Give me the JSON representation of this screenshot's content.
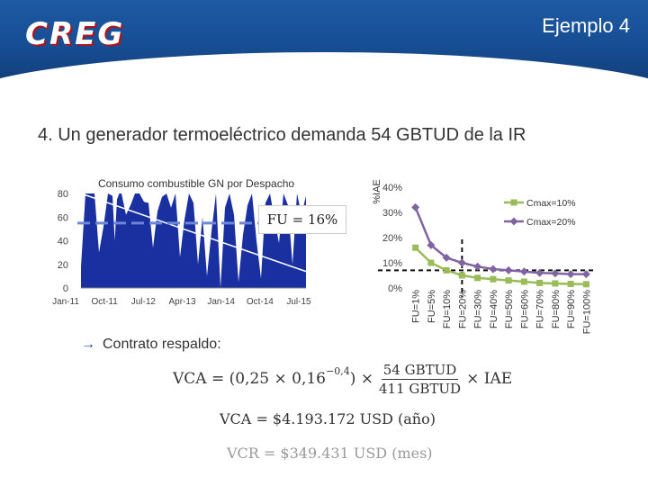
{
  "header": {
    "logo_text": "CREG",
    "slide_title": "Ejemplo 4",
    "colors": {
      "band": "#174e93",
      "logo_accent": "#d9202a"
    }
  },
  "heading": "4. Un generador termoeléctrico demanda 54 GBTUD de la IR",
  "bullet": {
    "icon": "arrow-right-icon",
    "arrow": "→",
    "text": "Contrato respaldo:"
  },
  "formulas": {
    "vca_lhs": "VCA = (0,25 × 0,16",
    "vca_exp": "−0,4",
    "vca_mid": ") ×",
    "frac_num": "54 GBTUD",
    "frac_den": "411 GBTUD",
    "vca_rhs": "× IAE",
    "vca_result": "VCA = $4.193.172 USD (año)",
    "vcr_result": "VCR = $349.431 USD (mes)"
  },
  "chart_data": [
    {
      "type": "area",
      "title": "Consumo combustible GN por Despacho",
      "yticks": [
        0,
        20,
        40,
        60,
        80
      ],
      "ylim": [
        0,
        80
      ],
      "xticks": [
        "Jan-11",
        "Oct-11",
        "Jul-12",
        "Apr-13",
        "Jan-14",
        "Oct-14",
        "Jul-15"
      ],
      "series_color": "#1a2fa0",
      "x": [
        0,
        2,
        4,
        6,
        8,
        10,
        12,
        14,
        15,
        16,
        17,
        18,
        20,
        22,
        24,
        26,
        28,
        30,
        32,
        34,
        36,
        38,
        40,
        42,
        44,
        46,
        48,
        50,
        52,
        54,
        56,
        58,
        60,
        62,
        64,
        66,
        68,
        70,
        72,
        74,
        76,
        78,
        80,
        82,
        84,
        86,
        88,
        90,
        92,
        94,
        96,
        98,
        100
      ],
      "values": [
        18,
        80,
        80,
        80,
        30,
        52,
        80,
        78,
        40,
        75,
        80,
        80,
        62,
        70,
        80,
        80,
        73,
        72,
        34,
        65,
        77,
        80,
        68,
        80,
        26,
        58,
        80,
        72,
        20,
        60,
        10,
        48,
        80,
        0,
        68,
        80,
        62,
        5,
        45,
        70,
        80,
        40,
        8,
        72,
        80,
        58,
        38,
        80,
        70,
        20,
        80,
        62,
        78
      ],
      "reference_lines": [
        {
          "label": "FU = 16%",
          "y": 55,
          "style": "dashed",
          "color": "#6c86d9"
        },
        {
          "label": "",
          "from": [
            0,
            80
          ],
          "to": [
            100,
            14
          ],
          "style": "solid",
          "color": "#ffffff"
        }
      ],
      "annotation": "FU = 16%"
    },
    {
      "type": "line",
      "ylabel": "%IAE",
      "ylim": [
        0,
        40
      ],
      "yticks": [
        "0%",
        "10%",
        "20%",
        "30%",
        "40%"
      ],
      "categories": [
        "FU=1%",
        "FU=5%",
        "FU=10%",
        "FU=20%",
        "FU=30%",
        "FU=40%",
        "FU=50%",
        "FU=60%",
        "FU=70%",
        "FU=80%",
        "FU=90%",
        "FU=100%"
      ],
      "legend_position": "top-right",
      "series": [
        {
          "name": "Cmax=10%",
          "color": "#9bbb59",
          "marker": "square",
          "values": [
            16,
            10,
            7,
            5,
            4,
            3.5,
            3,
            2.5,
            2,
            1.8,
            1.6,
            1.5
          ]
        },
        {
          "name": "Cmax=20%",
          "color": "#8064a2",
          "marker": "diamond",
          "values": [
            32,
            17,
            12,
            10,
            8.5,
            7.5,
            7,
            6.5,
            6,
            5.8,
            5.5,
            5.5
          ]
        }
      ],
      "guide_lines": {
        "vertical_at": "FU=20%",
        "horizontal_y": 7
      }
    }
  ]
}
